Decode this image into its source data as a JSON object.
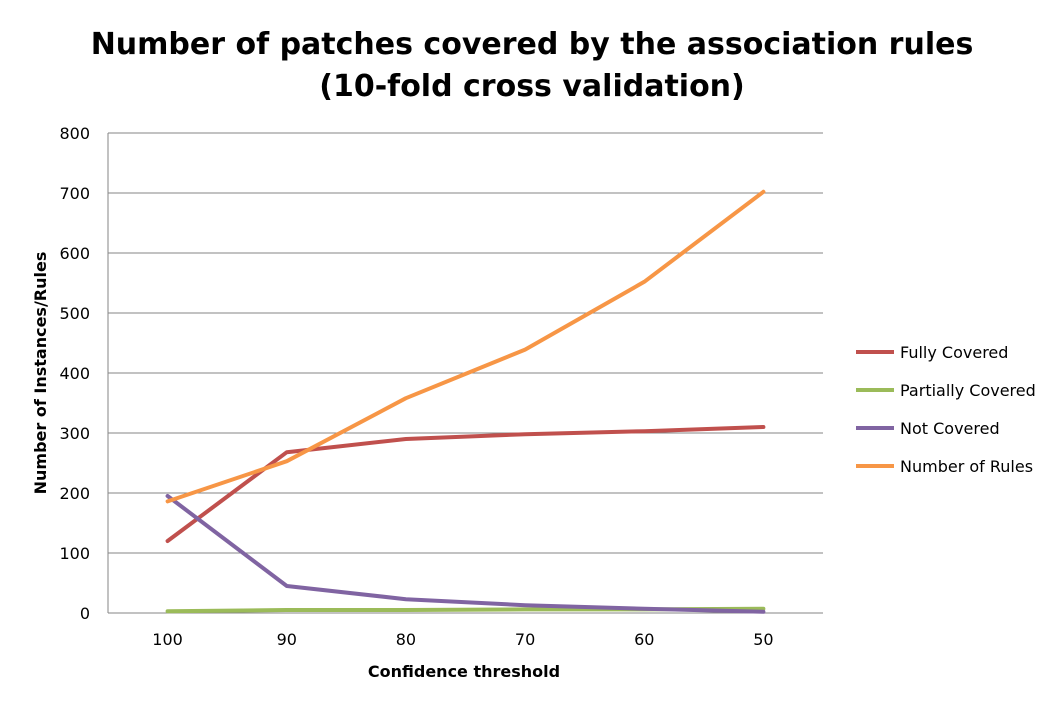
{
  "chart_data": {
    "type": "line",
    "title_lines": [
      "Number of patches covered by the association rules",
      "(10-fold cross validation)"
    ],
    "xlabel": "Confidence threshold",
    "ylabel": "Number of Instances/Rules",
    "categories": [
      "100",
      "90",
      "80",
      "70",
      "60",
      "50"
    ],
    "ylim": [
      0,
      800
    ],
    "yticks": [
      0,
      100,
      200,
      300,
      400,
      500,
      600,
      700,
      800
    ],
    "grid": true,
    "legend_position": "right",
    "series": [
      {
        "name": "Fully Covered",
        "color": "#C0504D",
        "values": [
          120,
          268,
          290,
          298,
          303,
          310
        ]
      },
      {
        "name": "Partially Covered",
        "color": "#9BBB59",
        "values": [
          3,
          5,
          5,
          6,
          6,
          7
        ]
      },
      {
        "name": "Not Covered",
        "color": "#8064A2",
        "values": [
          195,
          45,
          23,
          13,
          7,
          2
        ]
      },
      {
        "name": "Number of Rules",
        "color": "#F79646",
        "values": [
          186,
          253,
          358,
          439,
          552,
          702
        ]
      }
    ]
  }
}
